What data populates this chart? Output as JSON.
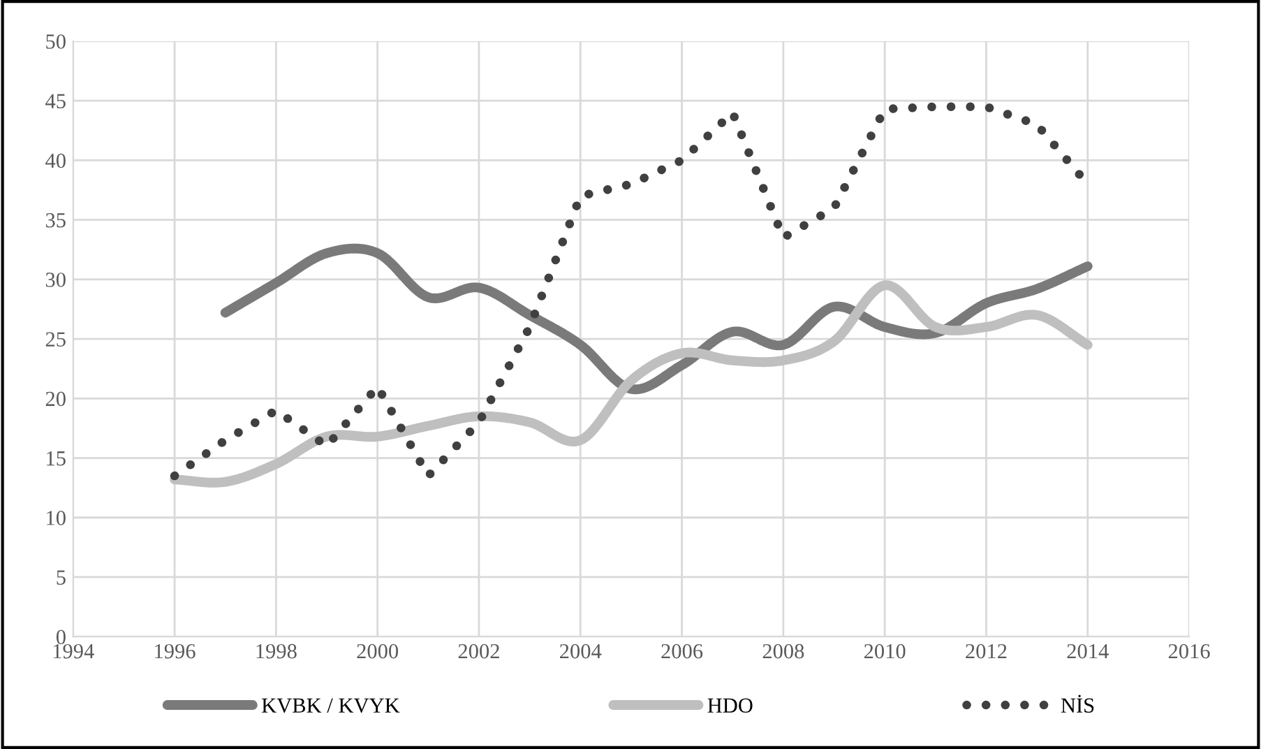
{
  "chart_data": {
    "type": "line",
    "xlim": [
      1994,
      2016
    ],
    "xticks": [
      1994,
      1996,
      1998,
      2000,
      2002,
      2004,
      2006,
      2008,
      2010,
      2012,
      2014,
      2016
    ],
    "ylim": [
      0,
      50
    ],
    "yticks": [
      0,
      5,
      10,
      15,
      20,
      25,
      30,
      35,
      40,
      45,
      50
    ],
    "grid": true,
    "legend": "bottom",
    "marker": "none",
    "series": [
      {
        "name": "KVBK / KVYK",
        "color": "#7a7a7a",
        "line_style": "solid",
        "x": [
          1997,
          1998,
          1999,
          2000,
          2001,
          2002,
          2003,
          2004,
          2005,
          2006,
          2007,
          2008,
          2009,
          2010,
          2011,
          2012,
          2013,
          2014
        ],
        "values": [
          27.2,
          29.7,
          32.2,
          32.2,
          28.5,
          29.3,
          27,
          24.5,
          20.8,
          22.8,
          25.6,
          24.5,
          27.7,
          26,
          25.5,
          28,
          29.2,
          31.1
        ]
      },
      {
        "name": "HDO",
        "color": "#bfbfbf",
        "line_style": "solid",
        "x": [
          1996,
          1997,
          1998,
          1999,
          2000,
          2001,
          2002,
          2003,
          2004,
          2005,
          2006,
          2007,
          2008,
          2009,
          2010,
          2011,
          2012,
          2013,
          2014
        ],
        "values": [
          13.2,
          13,
          14.5,
          16.8,
          16.8,
          17.7,
          18.5,
          18,
          16.5,
          21.5,
          23.8,
          23.2,
          23.2,
          24.8,
          29.5,
          26,
          26,
          27,
          24.5
        ]
      },
      {
        "name": "NİS",
        "color": "#404040",
        "line_style": "dotted",
        "x": [
          1996,
          1997,
          1998,
          1999,
          2000,
          2001,
          2002,
          2003,
          2004,
          2005,
          2006,
          2007,
          2008,
          2009,
          2010,
          2011,
          2012,
          2013,
          2014
        ],
        "values": [
          13.5,
          16.5,
          19,
          16,
          21,
          13.5,
          18,
          26,
          37,
          38,
          40,
          44,
          33.5,
          36,
          44.3,
          44.5,
          44.5,
          43,
          38
        ]
      }
    ]
  }
}
